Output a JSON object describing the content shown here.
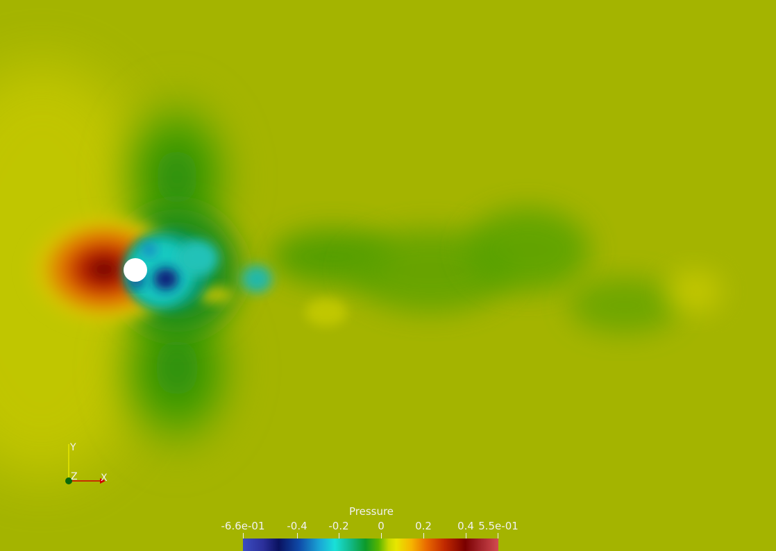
{
  "window": {
    "title": ""
  },
  "field": {
    "type": "pressure-contour",
    "background_color": "#a4b400",
    "cylinder_color": "#ffffff"
  },
  "orientation_axes": {
    "x_label": "X",
    "y_label": "Y",
    "z_label": "Z",
    "x_color": "#d00000",
    "y_color": "#e6e600",
    "z_color": "#0a6a0a"
  },
  "colorbar": {
    "title": "Pressure",
    "ticks": [
      "-6.6e-01",
      "-0.4",
      "-0.2",
      "0",
      "0.2",
      "0.4",
      "5.5e-01"
    ],
    "range": [
      -0.66,
      0.55
    ],
    "colormap": "jet-like"
  }
}
